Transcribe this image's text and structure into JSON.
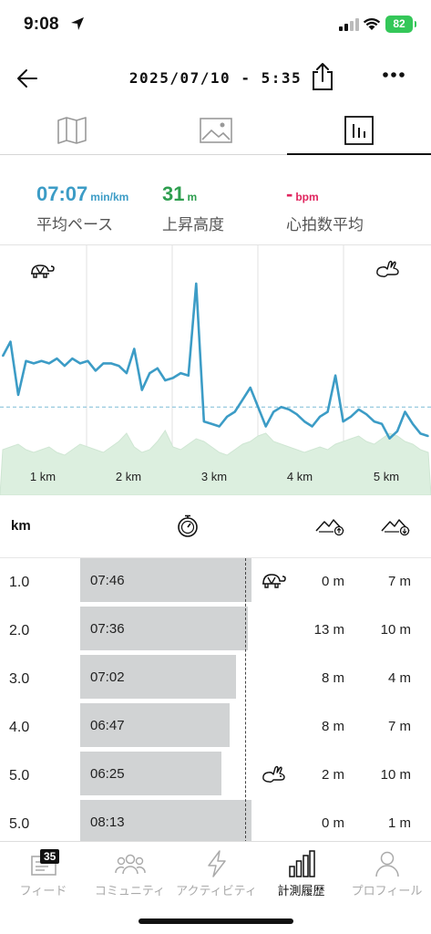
{
  "status": {
    "time": "9:08",
    "battery": "82"
  },
  "header": {
    "title": "2025/07/10 - 5:35"
  },
  "summary": {
    "pace": {
      "value": "07:07",
      "unit": "min/km",
      "label": "平均ペース",
      "color": "#3c9cc6"
    },
    "ascent": {
      "value": "31",
      "unit": "m",
      "label": "上昇高度",
      "color": "#2e9e4f"
    },
    "hr": {
      "value": "-",
      "unit": "bpm",
      "label": "心拍数平均",
      "color": "#e0245e"
    }
  },
  "chart_data": {
    "type": "line",
    "x_tick_labels": [
      "1 km",
      "2 km",
      "3 km",
      "4 km",
      "5 km"
    ],
    "series": [
      {
        "values": [
          4.2,
          3.6,
          5.8,
          4.4,
          4.5,
          4.4,
          4.5,
          4.3,
          4.6,
          4.3,
          4.5,
          4.4,
          4.8,
          4.5,
          4.5,
          4.6,
          4.9,
          3.9,
          5.6,
          4.9,
          4.7,
          5.2,
          5.1,
          4.9,
          5.0,
          1.2,
          6.9,
          7.0,
          7.1,
          6.7,
          6.5,
          6.0,
          5.5,
          6.3,
          7.1,
          6.5,
          6.3,
          6.4,
          6.6,
          6.9,
          7.1,
          6.7,
          6.5,
          5.0,
          6.9,
          6.7,
          6.4,
          6.6,
          6.9,
          7.0,
          7.6,
          7.3,
          6.5,
          7.0,
          7.4,
          7.5
        ]
      }
    ],
    "average_line": 6.3
  },
  "splits": {
    "header": {
      "km": "km"
    },
    "rows": [
      {
        "km": "1.0",
        "pace": "07:46",
        "bar": 0.94,
        "icon": "turtle",
        "asc": "0 m",
        "desc": "7 m"
      },
      {
        "km": "2.0",
        "pace": "07:36",
        "bar": 0.92,
        "icon": "",
        "asc": "13 m",
        "desc": "10 m"
      },
      {
        "km": "3.0",
        "pace": "07:02",
        "bar": 0.855,
        "icon": "",
        "asc": "8 m",
        "desc": "4 m"
      },
      {
        "km": "4.0",
        "pace": "06:47",
        "bar": 0.82,
        "icon": "",
        "asc": "8 m",
        "desc": "7 m"
      },
      {
        "km": "5.0",
        "pace": "06:25",
        "bar": 0.775,
        "icon": "rabbit",
        "asc": "2 m",
        "desc": "10 m"
      },
      {
        "km": "5.0",
        "pace": "08:13",
        "bar": 0.94,
        "icon": "",
        "asc": "0 m",
        "desc": "1 m"
      }
    ]
  },
  "nav": {
    "feed": {
      "label": "フィード",
      "badge": "35"
    },
    "community": {
      "label": "コミュニティ"
    },
    "activity": {
      "label": "アクティビティ"
    },
    "history": {
      "label": "計測履歴"
    },
    "profile": {
      "label": "プロフィール"
    }
  }
}
